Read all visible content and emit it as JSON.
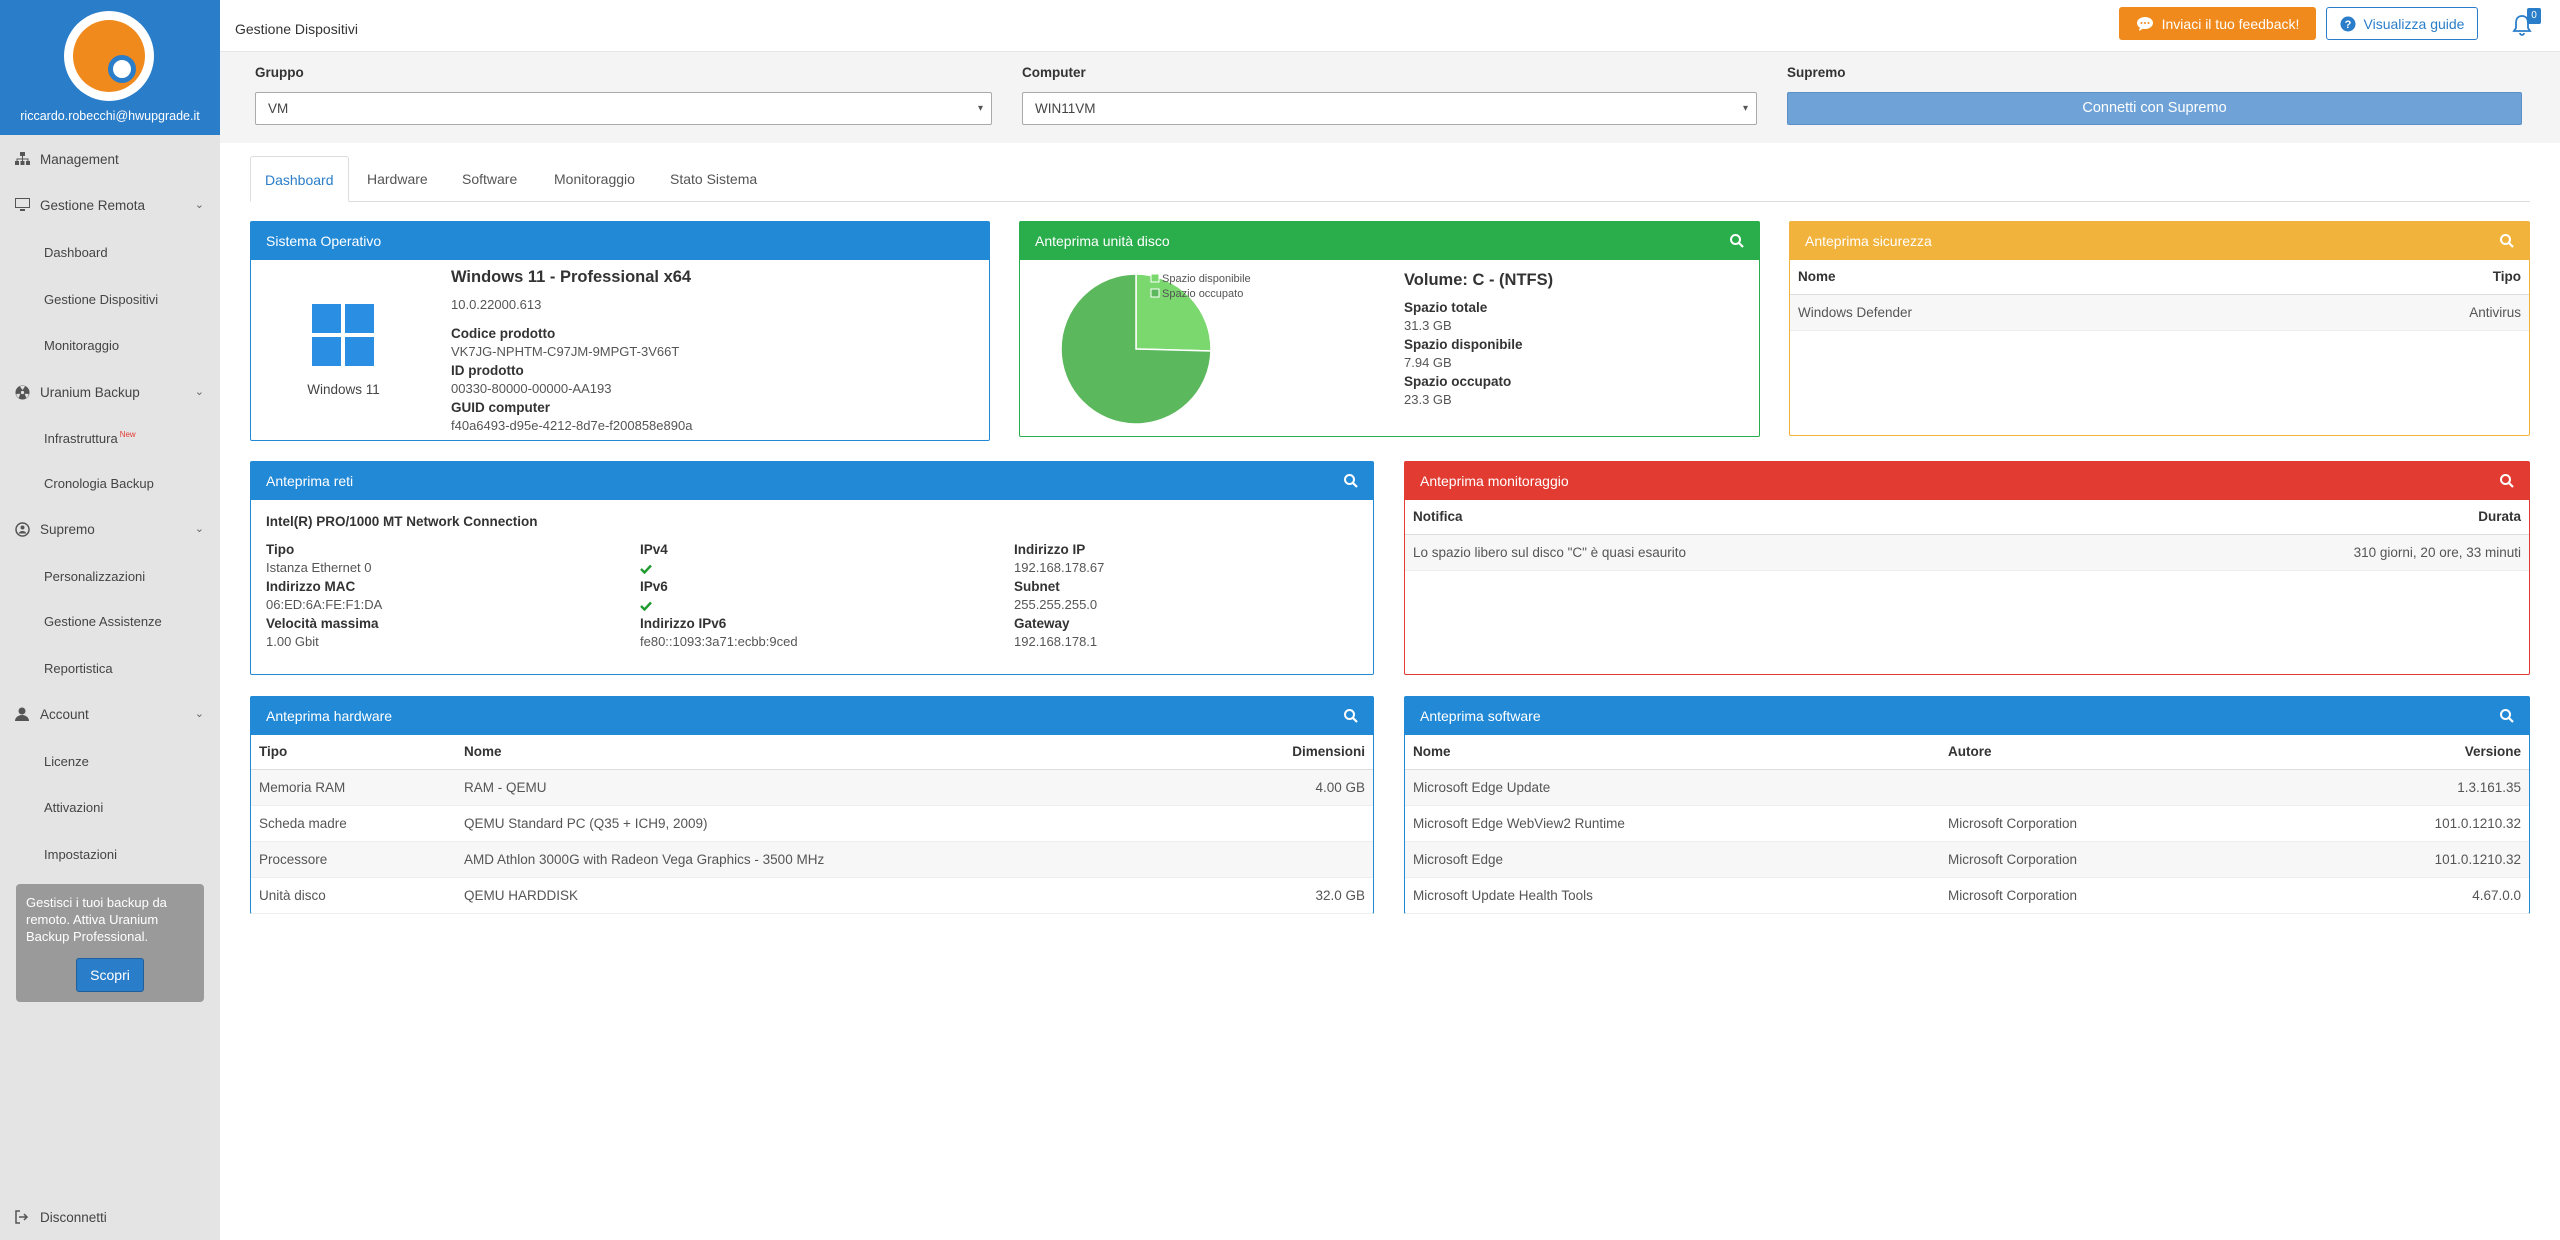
{
  "user": {
    "email": "riccardo.robecchi@hwupgrade.it"
  },
  "sidebar": {
    "management": "Management",
    "gestione_remota": "Gestione Remota",
    "dashboard": "Dashboard",
    "gestione_dispositivi": "Gestione Dispositivi",
    "monitoraggio": "Monitoraggio",
    "uranium_backup": "Uranium Backup",
    "infrastruttura": "Infrastruttura",
    "new_badge": "New",
    "cronologia_backup": "Cronologia Backup",
    "supremo": "Supremo",
    "personalizzazioni": "Personalizzazioni",
    "gestione_assistenze": "Gestione Assistenze",
    "reportistica": "Reportistica",
    "account": "Account",
    "licenze": "Licenze",
    "attivazioni": "Attivazioni",
    "impostazioni": "Impostazioni",
    "disconnetti": "Disconnetti"
  },
  "promo": {
    "text": "Gestisci i tuoi backup da remoto. Attiva Uranium Backup Professional.",
    "button": "Scopri"
  },
  "header": {
    "title": "Gestione Dispositivi",
    "feedback": "Inviaci il tuo feedback!",
    "guide": "Visualizza guide",
    "notifications": "0"
  },
  "filters": {
    "gruppo_label": "Gruppo",
    "gruppo_value": "VM",
    "computer_label": "Computer",
    "computer_value": "WIN11VM",
    "supremo_label": "Supremo",
    "connect": "Connetti con Supremo"
  },
  "tabs": [
    "Dashboard",
    "Hardware",
    "Software",
    "Monitoraggio",
    "Stato Sistema"
  ],
  "os": {
    "header": "Sistema Operativo",
    "logo_label": "Windows 11",
    "name": "Windows 11 - Professional x64",
    "version": "10.0.22000.613",
    "product_code_label": "Codice prodotto",
    "product_code": "VK7JG-NPHTM-C97JM-9MPGT-3V66T",
    "product_id_label": "ID prodotto",
    "product_id": "00330-80000-00000-AA193",
    "guid_label": "GUID computer",
    "guid": "f40a6493-d95e-4212-8d7e-f200858e890a"
  },
  "disk": {
    "header": "Anteprima unità disco",
    "legend_free": "Spazio disponibile",
    "legend_used": "Spazio occupato",
    "volume": "Volume: C - (NTFS)",
    "total_label": "Spazio totale",
    "total": "31.3 GB",
    "free_label": "Spazio disponibile",
    "free": "7.94 GB",
    "used_label": "Spazio occupato",
    "used": "23.3 GB",
    "color_free": "#7bd86f",
    "color_used": "#5cb85c"
  },
  "chart_data": {
    "type": "pie",
    "categories": [
      "Spazio disponibile",
      "Spazio occupato"
    ],
    "values": [
      7.94,
      23.3
    ]
  },
  "security": {
    "header": "Anteprima sicurezza",
    "col_name": "Nome",
    "col_type": "Tipo",
    "rows": [
      {
        "name": "Windows Defender",
        "type": "Antivirus"
      }
    ]
  },
  "network": {
    "header": "Anteprima reti",
    "adapter": "Intel(R) PRO/1000 MT Network Connection",
    "tipo_label": "Tipo",
    "tipo": "Istanza Ethernet 0",
    "mac_label": "Indirizzo MAC",
    "mac": "06:ED:6A:FE:F1:DA",
    "speed_label": "Velocità massima",
    "speed": "1.00 Gbit",
    "ipv4_label": "IPv4",
    "ipv6_label": "IPv6",
    "ipv6addr_label": "Indirizzo IPv6",
    "ipv6addr": "fe80::1093:3a71:ecbb:9ced",
    "ip_label": "Indirizzo IP",
    "ip": "192.168.178.67",
    "subnet_label": "Subnet",
    "subnet": "255.255.255.0",
    "gateway_label": "Gateway",
    "gateway": "192.168.178.1"
  },
  "monitoring": {
    "header": "Anteprima monitoraggio",
    "col_notifica": "Notifica",
    "col_durata": "Durata",
    "rows": [
      {
        "notifica": "Lo spazio libero sul disco \"C\" è quasi esaurito",
        "durata": "310 giorni, 20 ore, 33 minuti"
      }
    ]
  },
  "hardware": {
    "header": "Anteprima hardware",
    "col_tipo": "Tipo",
    "col_nome": "Nome",
    "col_dim": "Dimensioni",
    "rows": [
      {
        "tipo": "Memoria RAM",
        "nome": "RAM - QEMU",
        "dim": "4.00 GB"
      },
      {
        "tipo": "Scheda madre",
        "nome": "QEMU Standard PC (Q35 + ICH9, 2009)",
        "dim": ""
      },
      {
        "tipo": "Processore",
        "nome": "AMD Athlon 3000G with Radeon Vega Graphics - 3500 MHz",
        "dim": ""
      },
      {
        "tipo": "Unità disco",
        "nome": "QEMU HARDDISK",
        "dim": "32.0 GB"
      }
    ]
  },
  "software": {
    "header": "Anteprima software",
    "col_nome": "Nome",
    "col_autore": "Autore",
    "col_versione": "Versione",
    "rows": [
      {
        "nome": "Microsoft Edge Update",
        "autore": "",
        "versione": "1.3.161.35"
      },
      {
        "nome": "Microsoft Edge WebView2 Runtime",
        "autore": "Microsoft Corporation",
        "versione": "101.0.1210.32"
      },
      {
        "nome": "Microsoft Edge",
        "autore": "Microsoft Corporation",
        "versione": "101.0.1210.32"
      },
      {
        "nome": "Microsoft Update Health Tools",
        "autore": "Microsoft Corporation",
        "versione": "4.67.0.0"
      }
    ]
  }
}
